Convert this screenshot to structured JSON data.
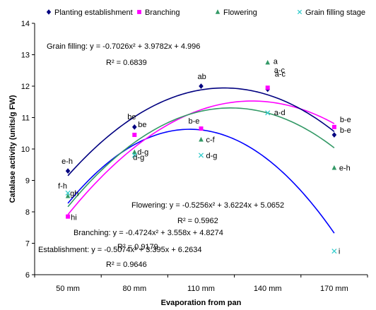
{
  "chart_data": {
    "type": "scatter",
    "title": "",
    "xlabel": "Evaporation from pan",
    "ylabel": "Catalase activity (units/g FW)",
    "categories": [
      "50 mm",
      "80 mm",
      "110 mm",
      "140 mm",
      "170 mm"
    ],
    "ylim": [
      6,
      14
    ],
    "yticks": [
      "6",
      "7",
      "8",
      "9",
      "10",
      "11",
      "12",
      "13",
      "14"
    ],
    "grid": false,
    "legend_position": "top",
    "series": [
      {
        "name": "Planting establishment",
        "marker": "diamond",
        "color": "#000080",
        "curve_color": "#000080",
        "values": [
          9.3,
          10.7,
          12.0,
          11.9,
          10.45
        ],
        "letters": [
          "e-h",
          "be",
          "ab",
          "a-c",
          "b-e"
        ],
        "equation": "Establishment: y = -0.5074x² + 3.395x + 6.2634",
        "r2": "R² = 0.9646",
        "fit": [
          -0.5074,
          3.395,
          6.2634
        ]
      },
      {
        "name": "Branching",
        "marker": "square",
        "color": "#ff00ff",
        "curve_color": "#ff00ff",
        "values": [
          7.85,
          10.45,
          10.65,
          11.95,
          10.7
        ],
        "letters": [
          "hi",
          "be",
          "b-e",
          "a-c",
          "b-e"
        ],
        "equation": "Branching: y = -0.4724x² + 3.558x + 4.8274",
        "r2": "R² = 0.9179",
        "fit": [
          -0.4724,
          3.558,
          4.8274
        ]
      },
      {
        "name": "Flowering",
        "marker": "triangle",
        "color": "#339966",
        "curve_color": "#339966",
        "values": [
          8.5,
          9.9,
          10.3,
          12.75,
          9.4
        ],
        "letters": [
          "f-h",
          "d-g",
          "c-f",
          "a",
          "e-h"
        ],
        "equation": "Flowering: y = -0.5256x² + 3.6224x + 5.0652",
        "r2": "R² = 0.5962",
        "fit": [
          -0.5256,
          3.6224,
          5.0652
        ]
      },
      {
        "name": "Grain filling stage",
        "marker": "x",
        "color": "#33cccc",
        "curve_color": "#0000ff",
        "values": [
          8.6,
          9.8,
          9.8,
          11.15,
          6.75
        ],
        "letters": [
          "gh",
          "d-g",
          "d-g",
          "a-d",
          "i"
        ],
        "equation": "Grain filling: y = -0.7026x² + 3.9782x + 4.996",
        "r2": "R² = 0.6839",
        "fit": [
          -0.7026,
          3.9782,
          4.996
        ]
      }
    ]
  }
}
